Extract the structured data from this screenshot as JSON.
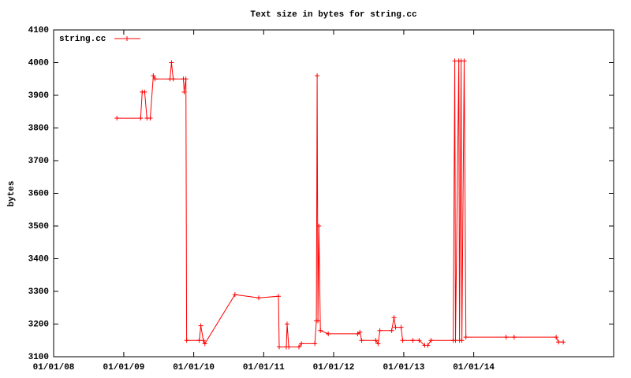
{
  "chart_data": {
    "type": "line",
    "title": "Text size in bytes for string.cc",
    "y_label": "bytes",
    "x": [
      "11/26/08",
      "03/30/09",
      "04/07/09",
      "04/20/09",
      "05/02/09",
      "05/19/09",
      "06/04/09",
      "06/13/09",
      "08/30/09",
      "09/07/09",
      "09/16/09",
      "11/08/09",
      "11/12/09",
      "11/21/09",
      "11/25/09",
      "01/30/10",
      "02/07/10",
      "02/20/10",
      "02/28/10",
      "08/04/10",
      "12/06/10",
      "03/19/11",
      "03/23/11",
      "04/29/11",
      "05/03/11",
      "05/12/11",
      "07/04/11",
      "07/17/11",
      "09/25/11",
      "10/03/11",
      "10/07/11",
      "10/11/11",
      "10/16/11",
      "10/24/11",
      "12/04/11",
      "05/05/12",
      "05/17/12",
      "05/26/12",
      "08/08/12",
      "08/20/12",
      "08/29/12",
      "10/30/12",
      "11/11/12",
      "11/19/12",
      "12/18/12",
      "12/26/12",
      "02/17/13",
      "03/22/13",
      "04/20/13",
      "05/06/13",
      "05/23/13",
      "09/16/13",
      "09/24/13",
      "09/28/13",
      "10/15/13",
      "10/19/13",
      "10/27/13",
      "10/31/13",
      "11/12/13",
      "11/21/13",
      "06/19/14",
      "07/31/14",
      "03/07/15",
      "03/19/15",
      "04/13/15"
    ],
    "series": [
      {
        "name": "string.cc",
        "color": "#ff0000",
        "values": [
          3830,
          3830,
          3910,
          3910,
          3830,
          3830,
          3960,
          3950,
          3950,
          4000,
          3950,
          3950,
          3910,
          3950,
          3150,
          3150,
          3195,
          3150,
          3140,
          3290,
          3280,
          3285,
          3130,
          3130,
          3200,
          3130,
          3130,
          3140,
          3140,
          3210,
          3960,
          3210,
          3500,
          3180,
          3170,
          3170,
          3175,
          3150,
          3150,
          3140,
          3180,
          3180,
          3220,
          3190,
          3190,
          3150,
          3150,
          3150,
          3135,
          3135,
          3150,
          3150,
          4005,
          3150,
          4005,
          3150,
          4005,
          3150,
          4005,
          3160,
          3160,
          3160,
          3160,
          3145,
          3145
        ]
      }
    ],
    "xlim": [
      "01/01/08",
      "01/01/16"
    ],
    "xticks": [
      "01/01/08",
      "01/01/09",
      "01/01/10",
      "01/01/11",
      "01/01/12",
      "01/01/13",
      "01/01/14"
    ],
    "ylim": [
      3100,
      4100
    ],
    "yticks": [
      3100,
      3200,
      3300,
      3400,
      3500,
      3600,
      3700,
      3800,
      3900,
      4000,
      4100
    ],
    "legend": "top-left",
    "grid": false
  }
}
